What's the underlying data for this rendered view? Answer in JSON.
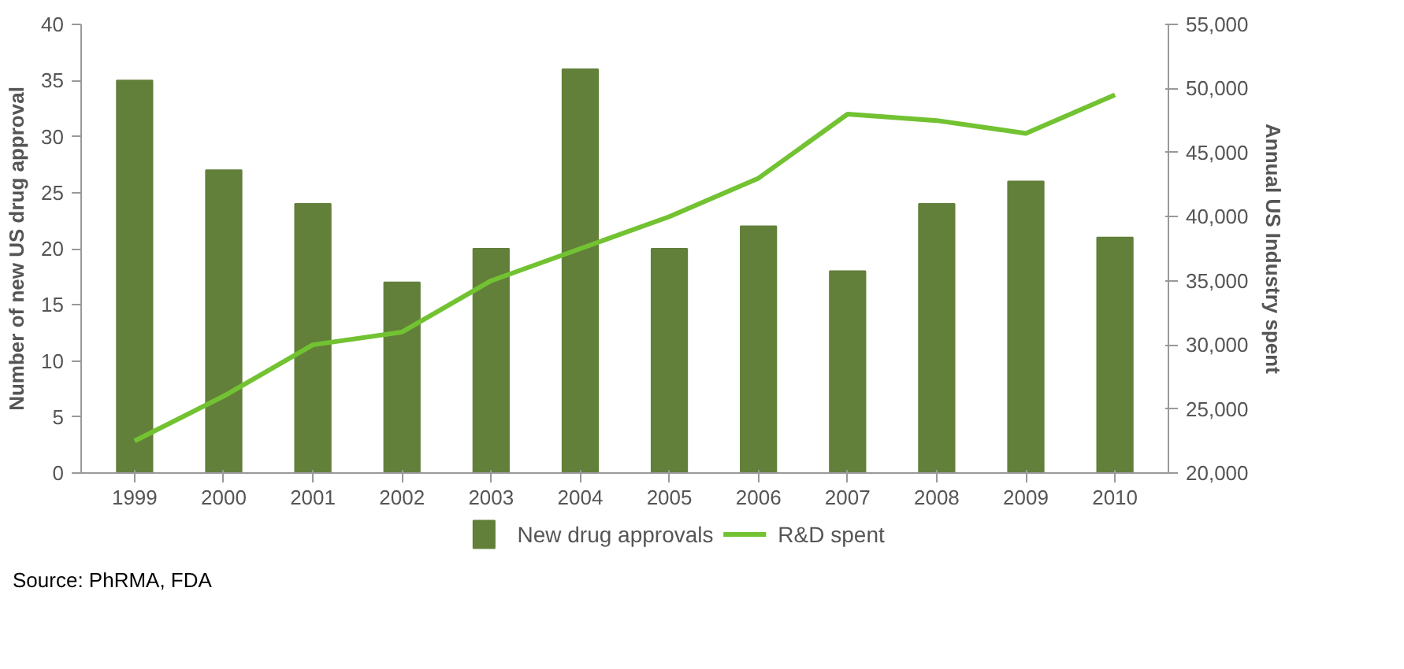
{
  "chart_data": {
    "type": "bar",
    "categories": [
      "1999",
      "2000",
      "2001",
      "2002",
      "2003",
      "2004",
      "2005",
      "2006",
      "2007",
      "2008",
      "2009",
      "2010"
    ],
    "series": [
      {
        "name": "New drug approvals",
        "color": "#62803a",
        "values": [
          35,
          27,
          24,
          17,
          20,
          36,
          20,
          22,
          18,
          24,
          26,
          21
        ]
      },
      {
        "name": "R&D spent",
        "color": "#72c232",
        "type": "line",
        "axis": "y2",
        "values": [
          22500,
          26000,
          30000,
          31000,
          35000,
          37500,
          40000,
          43000,
          48000,
          47500,
          46500,
          49500
        ]
      }
    ],
    "ylabel": "Number of new US drug approval",
    "y2label": "Annual US Industry spent",
    "ylim": [
      0,
      40
    ],
    "yticks": [
      0,
      5,
      10,
      15,
      20,
      25,
      30,
      35,
      40
    ],
    "y2lim": [
      20000,
      55000
    ],
    "y2ticks": [
      {
        "value": 20000,
        "label": "20,000"
      },
      {
        "value": 25000,
        "label": "25,000"
      },
      {
        "value": 30000,
        "label": "30,000"
      },
      {
        "value": 35000,
        "label": "35,000"
      },
      {
        "value": 40000,
        "label": "40,000"
      },
      {
        "value": 45000,
        "label": "45,000"
      },
      {
        "value": 50000,
        "label": "50,000"
      },
      {
        "value": 55000,
        "label": "55,000"
      }
    ],
    "legend": "bottom",
    "grid": false,
    "annotations": [
      "Source: PhRMA, FDA"
    ]
  }
}
